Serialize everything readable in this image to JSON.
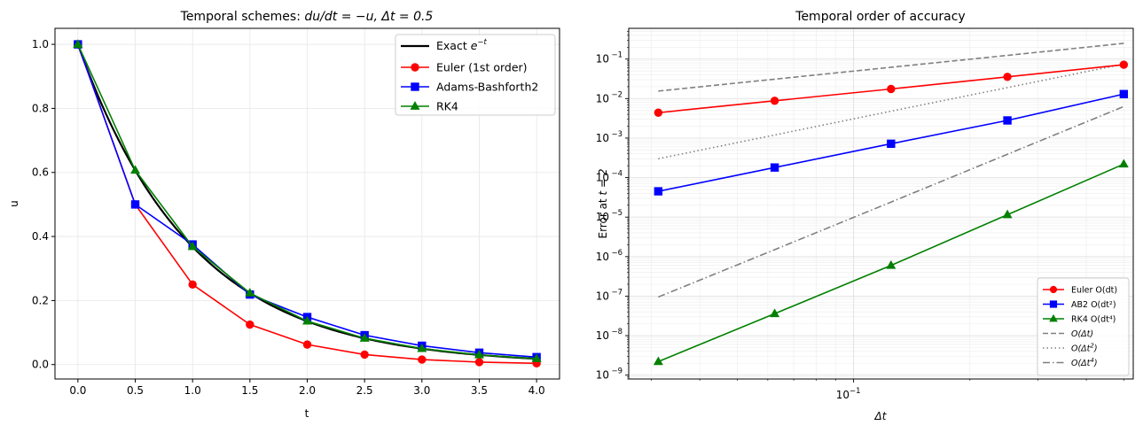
{
  "chart_data": [
    {
      "type": "line",
      "title_main": "Temporal schemes: ",
      "title_math": "du/dt = −u, Δt = 0.5",
      "xlabel": "t",
      "ylabel": "u",
      "xlim": [
        -0.2,
        4.2
      ],
      "ylim": [
        -0.045,
        1.05
      ],
      "xticks": [
        0.0,
        0.5,
        1.0,
        1.5,
        2.0,
        2.5,
        3.0,
        3.5,
        4.0
      ],
      "xtick_labels": [
        "0.0",
        "0.5",
        "1.0",
        "1.5",
        "2.0",
        "2.5",
        "3.0",
        "3.5",
        "4.0"
      ],
      "yticks": [
        0.0,
        0.2,
        0.4,
        0.6,
        0.8,
        1.0
      ],
      "ytick_labels": [
        "0.0",
        "0.2",
        "0.4",
        "0.6",
        "0.8",
        "1.0"
      ],
      "grid": true,
      "legend_position": "top-right",
      "x": [
        0.0,
        0.5,
        1.0,
        1.5,
        2.0,
        2.5,
        3.0,
        3.5,
        4.0
      ],
      "exact": {
        "name_base": "Exact ",
        "name_math": "e",
        "name_sup": "−t",
        "color": "#000000"
      },
      "series": [
        {
          "name": "Euler (1st order)",
          "color": "#ff0000",
          "marker": "circle",
          "values": [
            1.0,
            0.5,
            0.25,
            0.125,
            0.0625,
            0.03125,
            0.015625,
            0.0078,
            0.0039
          ]
        },
        {
          "name": "Adams-Bashforth2",
          "color": "#0000ff",
          "marker": "square",
          "values": [
            1.0,
            0.5,
            0.375,
            0.21875,
            0.1484,
            0.0918,
            0.0588,
            0.0371,
            0.0233
          ]
        },
        {
          "name": "RK4",
          "color": "#008000",
          "marker": "triangle",
          "values": [
            1.0,
            0.6068,
            0.3682,
            0.2234,
            0.1356,
            0.0823,
            0.0499,
            0.0303,
            0.0184
          ]
        }
      ]
    },
    {
      "type": "line",
      "title": "Temporal order of accuracy",
      "xlabel": "Δt",
      "ylabel_base": "Error at ",
      "ylabel_math": "t = 2",
      "xscale": "log",
      "yscale": "log",
      "xlim": [
        0.0262,
        0.529
      ],
      "ylim": [
        8e-10,
        0.6
      ],
      "xtick_label_base": "10",
      "xtick_label_exp": "−1",
      "ytick_exps": [
        -9,
        -8,
        -7,
        -6,
        -5,
        -4,
        -3,
        -2,
        -1
      ],
      "ytick_exp_labels": [
        "−9",
        "−8",
        "−7",
        "−6",
        "−5",
        "−4",
        "−3",
        "−2",
        "−1"
      ],
      "ytick_base": "10",
      "grid": true,
      "legend_position": "bottom-right",
      "x": [
        0.03125,
        0.0625,
        0.125,
        0.25,
        0.5
      ],
      "series": [
        {
          "name": "Euler O(dt)",
          "color": "#ff0000",
          "marker": "circle",
          "values": [
            0.0044,
            0.0088,
            0.0175,
            0.0355,
            0.072
          ]
        },
        {
          "name": "AB2 O(dt²)",
          "color": "#0000ff",
          "marker": "square",
          "values": [
            4.5e-05,
            0.00018,
            0.00072,
            0.0028,
            0.013
          ]
        },
        {
          "name": "RK4 O(dt⁴)",
          "color": "#008000",
          "marker": "triangle",
          "values": [
            2.2e-09,
            3.6e-08,
            6e-07,
            1.15e-05,
            0.00022
          ]
        }
      ],
      "reference_lines": [
        {
          "name_base": "O(Δt",
          "name_sup": "",
          "name_end": ")",
          "color": "#808080",
          "dash": "6,3",
          "values": [
            0.0155,
            0.031,
            0.062,
            0.124,
            0.25
          ]
        },
        {
          "name_base": "O(Δt",
          "name_sup": "2",
          "name_end": ")",
          "color": "#808080",
          "dash": "1.5,3",
          "values": [
            0.0003,
            0.0012,
            0.0048,
            0.019,
            0.075
          ]
        },
        {
          "name_base": "O(Δt",
          "name_sup": "4",
          "name_end": ")",
          "color": "#808080",
          "dash": "8,3,1.5,3",
          "values": [
            9.5e-08,
            1.5e-06,
            2.4e-05,
            0.00039,
            0.0063
          ]
        }
      ]
    }
  ]
}
